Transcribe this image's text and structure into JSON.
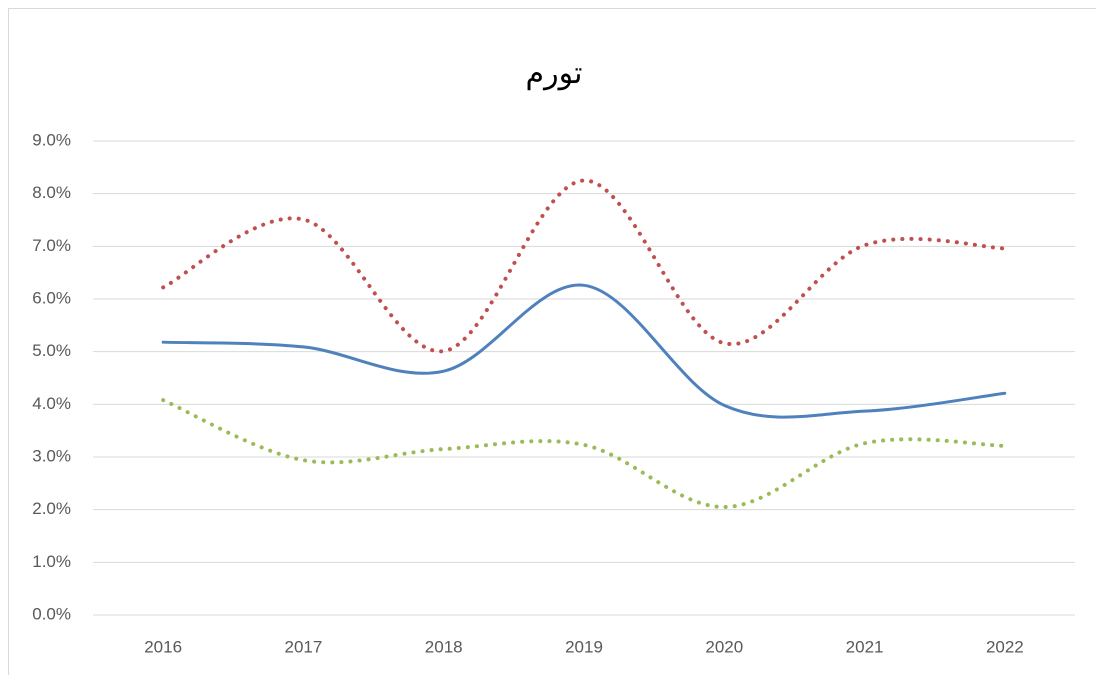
{
  "chart_data": {
    "type": "line",
    "title": "تورم",
    "categories": [
      "2016",
      "2017",
      "2018",
      "2019",
      "2020",
      "2021",
      "2022"
    ],
    "series": [
      {
        "color": "#4f81bd",
        "dash": "solid",
        "values": [
          5.18,
          5.09,
          4.63,
          6.26,
          3.98,
          3.87,
          4.21
        ]
      },
      {
        "color": "#c0504d",
        "dash": "dotted",
        "values": [
          6.22,
          7.51,
          5.01,
          8.25,
          5.16,
          7.02,
          6.96
        ]
      },
      {
        "color": "#9bbb59",
        "dash": "dotted",
        "values": [
          4.08,
          2.94,
          3.15,
          3.23,
          2.05,
          3.26,
          3.21
        ]
      }
    ],
    "smooth": true,
    "ylim": [
      0,
      9
    ],
    "yticks": [
      {
        "value": 0,
        "label": "0.0%"
      },
      {
        "value": 1,
        "label": "1.0%"
      },
      {
        "value": 2,
        "label": "2.0%"
      },
      {
        "value": 3,
        "label": "3.0%"
      },
      {
        "value": 4,
        "label": "4.0%"
      },
      {
        "value": 5,
        "label": "5.0%"
      },
      {
        "value": 6,
        "label": "6.0%"
      },
      {
        "value": 7,
        "label": "7.0%"
      },
      {
        "value": 8,
        "label": "8.0%"
      },
      {
        "value": 9,
        "label": "9.0%"
      }
    ],
    "grid": true
  }
}
